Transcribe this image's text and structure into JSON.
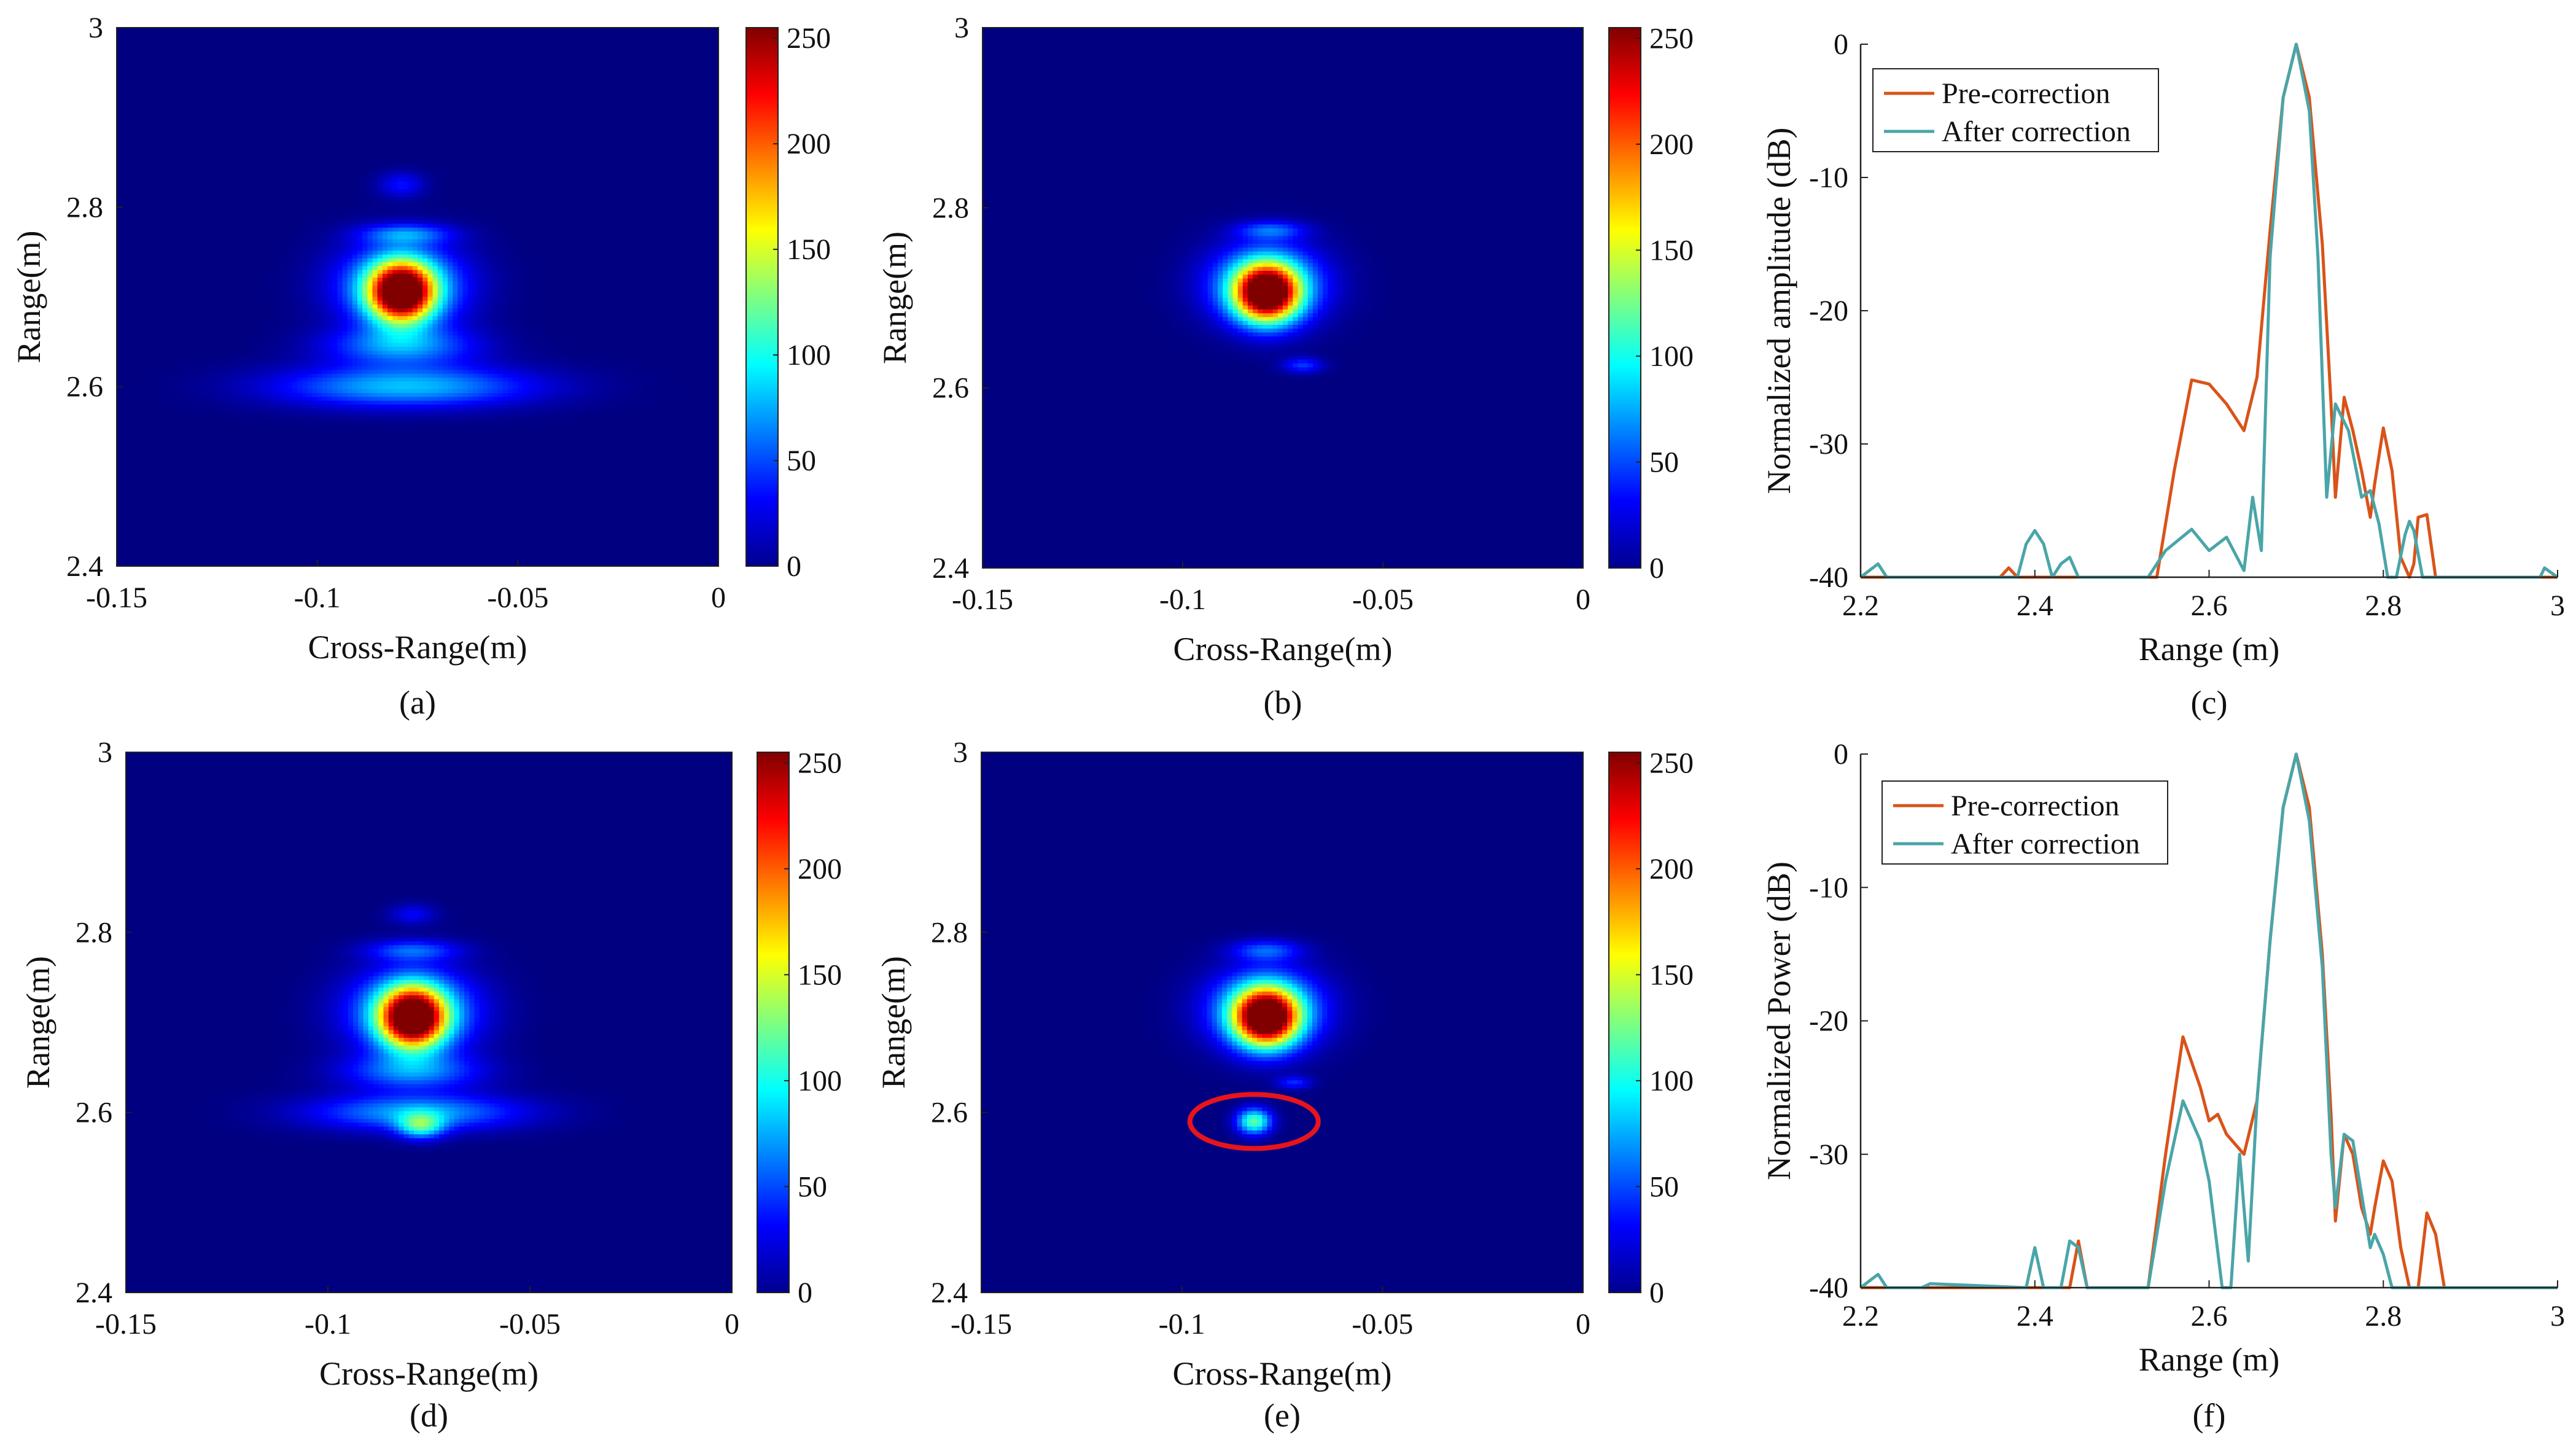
{
  "figure": {
    "panels": [
      {
        "label": "(a)",
        "type": "heatmap",
        "xlabel": "Cross-Range(m)",
        "ylabel": "Range(m)",
        "xticks": [
          "-0.15",
          "-0.1",
          "-0.05",
          "0"
        ],
        "yticks": [
          "2.4",
          "2.6",
          "2.8",
          "3"
        ],
        "colorbar_ticks": [
          "0",
          "50",
          "100",
          "150",
          "200",
          "250"
        ]
      },
      {
        "label": "(b)",
        "type": "heatmap",
        "xlabel": "Cross-Range(m)",
        "ylabel": "Range(m)",
        "xticks": [
          "-0.15",
          "-0.1",
          "-0.05",
          "0"
        ],
        "yticks": [
          "2.4",
          "2.6",
          "2.8",
          "3"
        ],
        "colorbar_ticks": [
          "0",
          "50",
          "100",
          "150",
          "200",
          "250"
        ]
      },
      {
        "label": "(c)",
        "type": "line",
        "xlabel": "Range (m)",
        "ylabel": "Normalized amplitude (dB)",
        "xticks": [
          "2.2",
          "2.4",
          "2.6",
          "2.8",
          "3"
        ],
        "yticks": [
          "-40",
          "-30",
          "-20",
          "-10",
          "0"
        ],
        "legend": [
          "Pre-correction",
          "After correction"
        ]
      },
      {
        "label": "(d)",
        "type": "heatmap",
        "xlabel": "Cross-Range(m)",
        "ylabel": "Range(m)",
        "xticks": [
          "-0.15",
          "-0.1",
          "-0.05",
          "0"
        ],
        "yticks": [
          "2.4",
          "2.6",
          "2.8",
          "3"
        ],
        "colorbar_ticks": [
          "0",
          "50",
          "100",
          "150",
          "200",
          "250"
        ]
      },
      {
        "label": "(e)",
        "type": "heatmap",
        "xlabel": "Cross-Range(m)",
        "ylabel": "Range(m)",
        "xticks": [
          "-0.15",
          "-0.1",
          "-0.05",
          "0"
        ],
        "yticks": [
          "2.4",
          "2.6",
          "2.8",
          "3"
        ],
        "colorbar_ticks": [
          "0",
          "50",
          "100",
          "150",
          "200",
          "250"
        ]
      },
      {
        "label": "(f)",
        "type": "line",
        "xlabel": "Range (m)",
        "ylabel": "Normalized Power (dB)",
        "xticks": [
          "2.2",
          "2.4",
          "2.6",
          "2.8",
          "3"
        ],
        "yticks": [
          "-40",
          "-30",
          "-20",
          "-10",
          "0"
        ],
        "legend": [
          "Pre-correction",
          "After correction"
        ]
      }
    ]
  },
  "chart_data": [
    {
      "panel": "a",
      "type": "heatmap",
      "xlabel": "Cross-Range(m)",
      "ylabel": "Range(m)",
      "xlim": [
        -0.15,
        0
      ],
      "ylim": [
        2.4,
        3
      ],
      "clim": [
        0,
        255
      ],
      "colormap": "jet",
      "blobs": [
        {
          "x": -0.079,
          "y": 2.705,
          "sx": 0.0055,
          "sy": 0.023,
          "v": 255
        },
        {
          "x": -0.079,
          "y": 2.712,
          "sx": 0.011,
          "sy": 0.032,
          "v": 95
        },
        {
          "x": -0.078,
          "y": 2.6,
          "sx": 0.022,
          "sy": 0.016,
          "v": 80
        },
        {
          "x": -0.079,
          "y": 2.645,
          "sx": 0.013,
          "sy": 0.015,
          "v": 65
        },
        {
          "x": -0.078,
          "y": 2.77,
          "sx": 0.008,
          "sy": 0.008,
          "v": 55
        },
        {
          "x": -0.079,
          "y": 2.825,
          "sx": 0.004,
          "sy": 0.01,
          "v": 35
        }
      ]
    },
    {
      "panel": "b",
      "type": "heatmap",
      "xlabel": "Cross-Range(m)",
      "ylabel": "Range(m)",
      "xlim": [
        -0.15,
        0
      ],
      "ylim": [
        2.4,
        3
      ],
      "clim": [
        0,
        255
      ],
      "colormap": "jet",
      "blobs": [
        {
          "x": -0.079,
          "y": 2.705,
          "sx": 0.0055,
          "sy": 0.022,
          "v": 255
        },
        {
          "x": -0.079,
          "y": 2.715,
          "sx": 0.01,
          "sy": 0.03,
          "v": 95
        },
        {
          "x": -0.078,
          "y": 2.775,
          "sx": 0.006,
          "sy": 0.007,
          "v": 50
        },
        {
          "x": -0.07,
          "y": 2.625,
          "sx": 0.0035,
          "sy": 0.006,
          "v": 45
        }
      ]
    },
    {
      "panel": "c",
      "type": "line",
      "title": "",
      "xlabel": "Range (m)",
      "ylabel": "Normalized amplitude (dB)",
      "xlim": [
        2.2,
        3
      ],
      "ylim": [
        -40,
        0
      ],
      "legend_loc": "top-left",
      "series": [
        {
          "name": "Pre-correction",
          "color": "#d95319",
          "x": [
            2.2,
            2.36,
            2.37,
            2.38,
            2.54,
            2.56,
            2.58,
            2.6,
            2.62,
            2.64,
            2.655,
            2.67,
            2.685,
            2.7,
            2.715,
            2.73,
            2.74,
            2.745,
            2.755,
            2.765,
            2.775,
            2.785,
            2.79,
            2.8,
            2.81,
            2.82,
            2.83,
            2.835,
            2.84,
            2.85,
            2.86,
            2.87,
            3.0
          ],
          "y": [
            -40,
            -40,
            -39.3,
            -40,
            -40,
            -32,
            -25.2,
            -25.5,
            -27,
            -29,
            -25,
            -14,
            -4,
            0,
            -4,
            -15,
            -27,
            -34,
            -26.5,
            -29,
            -32,
            -35.5,
            -33,
            -28.8,
            -32,
            -38.5,
            -40,
            -39,
            -35.5,
            -35.3,
            -40,
            -40,
            -40
          ]
        },
        {
          "name": "After correction",
          "color": "#4aa5a8",
          "x": [
            2.2,
            2.21,
            2.22,
            2.23,
            2.38,
            2.39,
            2.4,
            2.41,
            2.42,
            2.43,
            2.44,
            2.45,
            2.53,
            2.55,
            2.58,
            2.6,
            2.62,
            2.64,
            2.65,
            2.66,
            2.67,
            2.685,
            2.7,
            2.715,
            2.725,
            2.735,
            2.745,
            2.76,
            2.775,
            2.785,
            2.795,
            2.805,
            2.815,
            2.825,
            2.83,
            2.835,
            2.845,
            2.98,
            2.985,
            3.0
          ],
          "y": [
            -40,
            -39.5,
            -39,
            -40,
            -40,
            -37.5,
            -36.5,
            -37.5,
            -40,
            -39,
            -38.5,
            -40,
            -40,
            -38,
            -36.4,
            -38,
            -37,
            -39.5,
            -34,
            -38,
            -16,
            -4,
            0,
            -5,
            -16,
            -34,
            -27,
            -29,
            -34,
            -33.5,
            -36,
            -40,
            -40,
            -36.8,
            -35.8,
            -36.5,
            -40,
            -40,
            -39.3,
            -40
          ]
        }
      ]
    },
    {
      "panel": "d",
      "type": "heatmap",
      "xlabel": "Cross-Range(m)",
      "ylabel": "Range(m)",
      "xlim": [
        -0.15,
        0
      ],
      "ylim": [
        2.4,
        3
      ],
      "clim": [
        0,
        255
      ],
      "colormap": "jet",
      "blobs": [
        {
          "x": -0.079,
          "y": 2.705,
          "sx": 0.0055,
          "sy": 0.023,
          "v": 255
        },
        {
          "x": -0.079,
          "y": 2.712,
          "sx": 0.011,
          "sy": 0.032,
          "v": 95
        },
        {
          "x": -0.078,
          "y": 2.6,
          "sx": 0.018,
          "sy": 0.014,
          "v": 75
        },
        {
          "x": -0.077,
          "y": 2.585,
          "sx": 0.004,
          "sy": 0.01,
          "v": 90
        },
        {
          "x": -0.079,
          "y": 2.645,
          "sx": 0.012,
          "sy": 0.014,
          "v": 60
        },
        {
          "x": -0.079,
          "y": 2.78,
          "sx": 0.008,
          "sy": 0.008,
          "v": 50
        },
        {
          "x": -0.079,
          "y": 2.82,
          "sx": 0.004,
          "sy": 0.008,
          "v": 30
        }
      ]
    },
    {
      "panel": "e",
      "type": "heatmap",
      "xlabel": "Cross-Range(m)",
      "ylabel": "Range(m)",
      "xlim": [
        -0.15,
        0
      ],
      "ylim": [
        2.4,
        3
      ],
      "clim": [
        0,
        255
      ],
      "colormap": "jet",
      "blobs": [
        {
          "x": -0.079,
          "y": 2.705,
          "sx": 0.0055,
          "sy": 0.022,
          "v": 255
        },
        {
          "x": -0.079,
          "y": 2.715,
          "sx": 0.01,
          "sy": 0.03,
          "v": 95
        },
        {
          "x": -0.079,
          "y": 2.78,
          "sx": 0.006,
          "sy": 0.008,
          "v": 50
        },
        {
          "x": -0.082,
          "y": 2.59,
          "sx": 0.003,
          "sy": 0.01,
          "v": 120
        },
        {
          "x": -0.072,
          "y": 2.633,
          "sx": 0.003,
          "sy": 0.005,
          "v": 40
        }
      ],
      "annotation": {
        "shape": "ellipse",
        "x": -0.082,
        "y": 2.59,
        "rx": 0.016,
        "ry": 0.03,
        "color": "#e8141b"
      }
    },
    {
      "panel": "f",
      "type": "line",
      "title": "",
      "xlabel": "Range (m)",
      "ylabel": "Normalized Power (dB)",
      "xlim": [
        2.2,
        3
      ],
      "ylim": [
        -40,
        0
      ],
      "legend_loc": "top-left",
      "series": [
        {
          "name": "Pre-correction",
          "color": "#d95319",
          "x": [
            2.2,
            2.44,
            2.45,
            2.46,
            2.53,
            2.55,
            2.57,
            2.59,
            2.6,
            2.61,
            2.62,
            2.64,
            2.655,
            2.67,
            2.685,
            2.7,
            2.715,
            2.73,
            2.74,
            2.745,
            2.755,
            2.765,
            2.775,
            2.785,
            2.79,
            2.8,
            2.81,
            2.82,
            2.83,
            2.84,
            2.85,
            2.86,
            2.87,
            3.0
          ],
          "y": [
            -40,
            -40,
            -36.5,
            -40,
            -40,
            -30,
            -21.2,
            -25,
            -27.5,
            -27,
            -28.5,
            -30,
            -26,
            -14,
            -4,
            0,
            -4,
            -15,
            -27,
            -35,
            -28.5,
            -30,
            -34,
            -36,
            -34,
            -30.5,
            -32,
            -37,
            -40,
            -40,
            -34.4,
            -36,
            -40,
            -40
          ]
        },
        {
          "name": "After correction",
          "color": "#4aa5a8",
          "x": [
            2.2,
            2.21,
            2.22,
            2.23,
            2.27,
            2.28,
            2.39,
            2.4,
            2.41,
            2.43,
            2.44,
            2.45,
            2.46,
            2.53,
            2.55,
            2.57,
            2.59,
            2.6,
            2.615,
            2.625,
            2.635,
            2.645,
            2.655,
            2.67,
            2.685,
            2.7,
            2.715,
            2.73,
            2.74,
            2.745,
            2.755,
            2.765,
            2.775,
            2.785,
            2.79,
            2.8,
            2.81,
            2.82,
            2.83,
            3.0
          ],
          "y": [
            -40,
            -39.5,
            -39,
            -40,
            -40,
            -39.7,
            -40,
            -37,
            -40,
            -40,
            -36.5,
            -37,
            -40,
            -40,
            -32,
            -26,
            -29,
            -32,
            -40,
            -40,
            -30,
            -38,
            -26,
            -14,
            -4,
            0,
            -5,
            -16,
            -30,
            -34,
            -28.5,
            -29,
            -33,
            -37,
            -36,
            -37.5,
            -40,
            -40,
            -40,
            -40
          ]
        }
      ]
    }
  ]
}
